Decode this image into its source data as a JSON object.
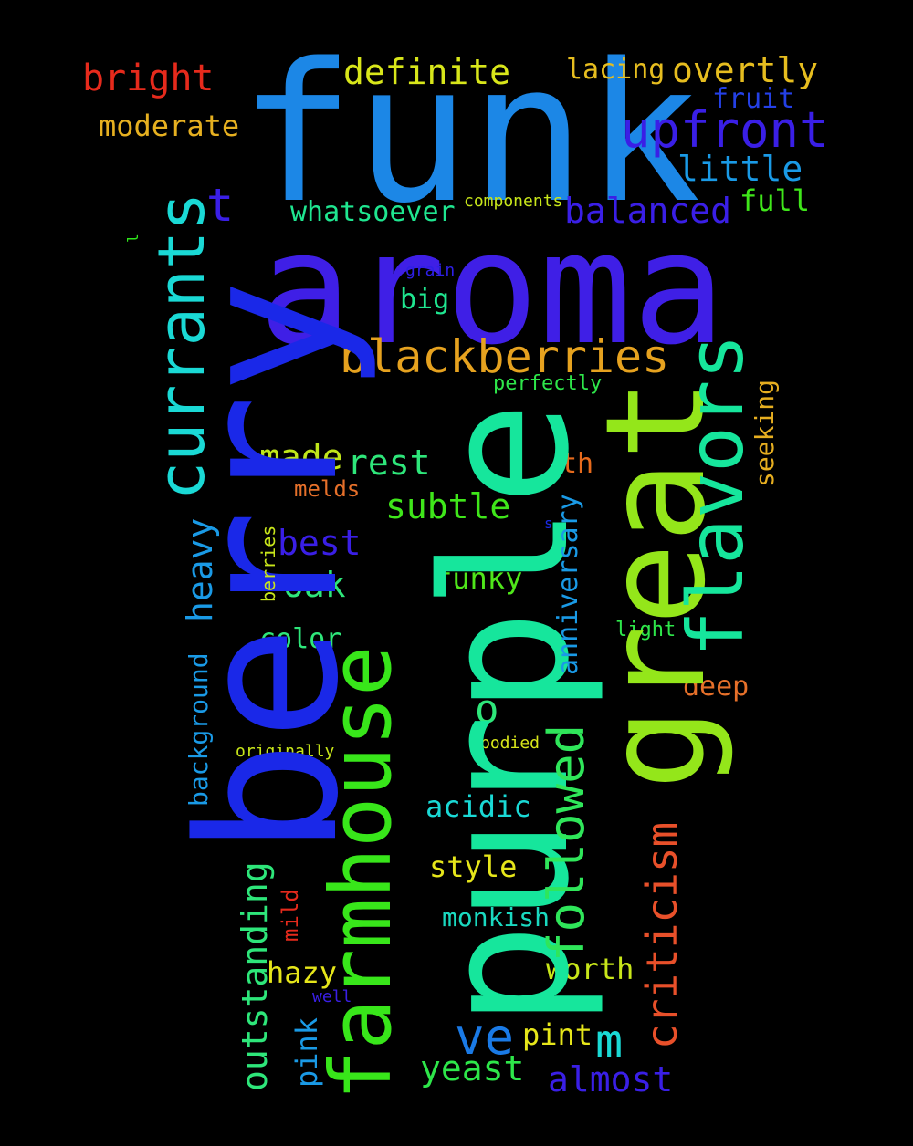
{
  "words": [
    {
      "text": "aroma",
      "color": "#3f1fe6"
    },
    {
      "text": "funk",
      "color": "#1c87e6"
    },
    {
      "text": "purple",
      "color": "#16e69c"
    },
    {
      "text": "berry",
      "color": "#1a28e8"
    },
    {
      "text": "great",
      "color": "#94e61a"
    },
    {
      "text": "farmhouse",
      "color": "#38e61a"
    },
    {
      "text": "currants",
      "color": "#1ad9d5"
    },
    {
      "text": "flavors",
      "color": "#16e69c"
    },
    {
      "text": "blackberries",
      "color": "#e6a21f"
    },
    {
      "text": "upfront",
      "color": "#3a1fe6"
    },
    {
      "text": "followed",
      "color": "#2fe65a"
    },
    {
      "text": "criticism",
      "color": "#e8502a"
    },
    {
      "text": "definite",
      "color": "#d8e61a"
    },
    {
      "text": "overtly",
      "color": "#e6bd1f"
    },
    {
      "text": "bright",
      "color": "#e62a1c"
    },
    {
      "text": "lacing",
      "color": "#e6bd1f"
    },
    {
      "text": "fruit",
      "color": "#2440e6"
    },
    {
      "text": "moderate",
      "color": "#e6b020"
    },
    {
      "text": "little",
      "color": "#1a9ae6"
    },
    {
      "text": "t",
      "color": "#3a1fe6"
    },
    {
      "text": "whatsoever",
      "color": "#1fe690"
    },
    {
      "text": "components",
      "color": "#c8e61a"
    },
    {
      "text": "balanced",
      "color": "#3a1fe6"
    },
    {
      "text": "full",
      "color": "#3fe61a"
    },
    {
      "text": "l",
      "color": "#2ee61a"
    },
    {
      "text": "grain",
      "color": "#2e1fe6"
    },
    {
      "text": "big",
      "color": "#1fe690"
    },
    {
      "text": "perfectly",
      "color": "#2ee64a"
    },
    {
      "text": "seeking",
      "color": "#e6ae20"
    },
    {
      "text": "made",
      "color": "#c0e61a"
    },
    {
      "text": "rest",
      "color": "#2ee67a"
    },
    {
      "text": "th",
      "color": "#e66a1c"
    },
    {
      "text": "melds",
      "color": "#e6702a"
    },
    {
      "text": "subtle",
      "color": "#3fe61a"
    },
    {
      "text": "anniversary",
      "color": "#1a9ae6"
    },
    {
      "text": "s",
      "color": "#1a2ae6"
    },
    {
      "text": "heavy",
      "color": "#1a9ae6"
    },
    {
      "text": "berries",
      "color": "#c8e61a"
    },
    {
      "text": "best",
      "color": "#3a1fe6"
    },
    {
      "text": "oak",
      "color": "#2ee67a"
    },
    {
      "text": "funky",
      "color": "#4fe61a"
    },
    {
      "text": "light",
      "color": "#2ee64a"
    },
    {
      "text": "color",
      "color": "#2ee67a"
    },
    {
      "text": "o",
      "color": "#2ee67a"
    },
    {
      "text": "deep",
      "color": "#e6702a"
    },
    {
      "text": "background",
      "color": "#1a9ae6"
    },
    {
      "text": "originally",
      "color": "#c8e61a"
    },
    {
      "text": "bodied",
      "color": "#d8e61a"
    },
    {
      "text": "acidic",
      "color": "#1ad9d5"
    },
    {
      "text": "outstanding",
      "color": "#2ee67a"
    },
    {
      "text": "mild",
      "color": "#e62a1c"
    },
    {
      "text": "style",
      "color": "#e6e61a"
    },
    {
      "text": "monkish",
      "color": "#1ad9c0"
    },
    {
      "text": "hazy",
      "color": "#e6e61a"
    },
    {
      "text": "well",
      "color": "#3a1fe6"
    },
    {
      "text": "worth",
      "color": "#c8e61a"
    },
    {
      "text": "ve",
      "color": "#1a7ae6"
    },
    {
      "text": "m",
      "color": "#1ad9d5"
    },
    {
      "text": "pint",
      "color": "#e6e61a"
    },
    {
      "text": "pink",
      "color": "#1a9ae6"
    },
    {
      "text": "yeast",
      "color": "#2ee64a"
    },
    {
      "text": "almost",
      "color": "#3a1fe6"
    }
  ]
}
